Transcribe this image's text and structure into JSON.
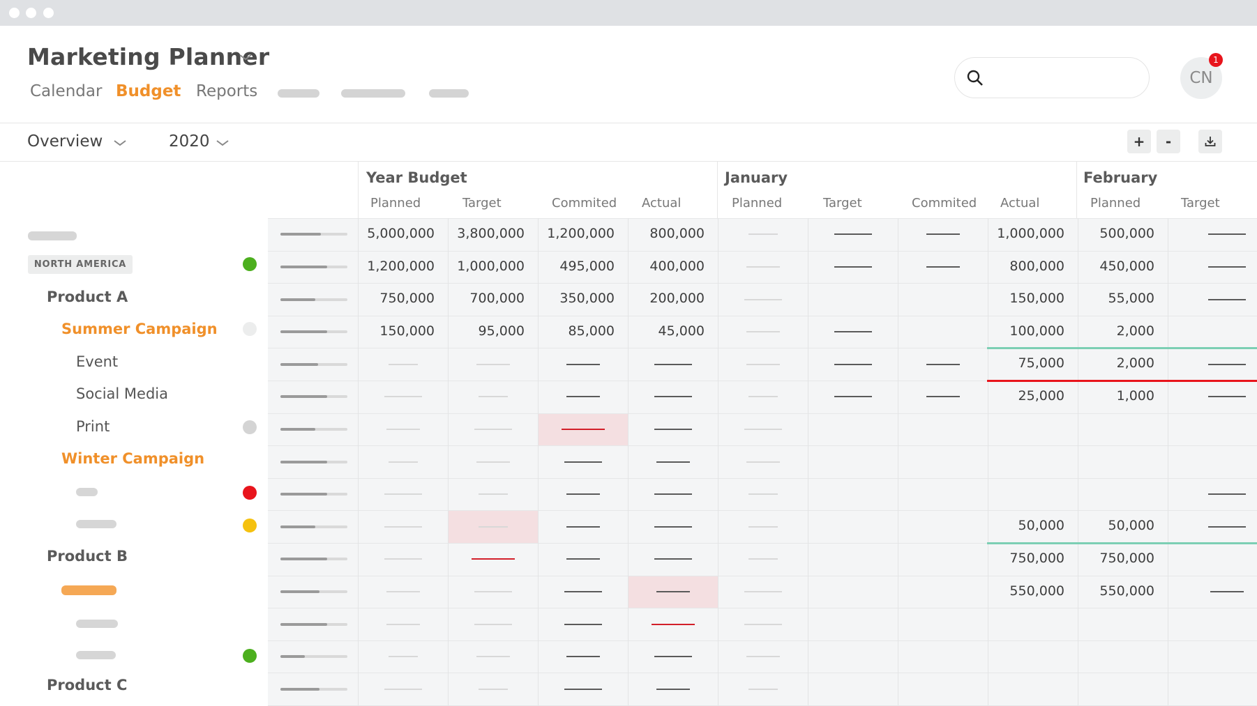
{
  "app": {
    "title": "Marketing Planner"
  },
  "nav": {
    "tabs": [
      {
        "label": "Calendar"
      },
      {
        "label": "Budget"
      },
      {
        "label": "Reports"
      }
    ]
  },
  "search": {
    "placeholder": "",
    "value": ""
  },
  "user": {
    "initials": "CN",
    "notifications": "1"
  },
  "filters": {
    "view": "Overview",
    "year": "2020"
  },
  "toolbar": {
    "add_label": "+",
    "remove_label": "-"
  },
  "icons": [
    "chevron-down-icon",
    "search-icon",
    "download-icon",
    "status-dot"
  ],
  "colors": {
    "accent": "#f0902a",
    "green": "#4caf1e",
    "red": "#e8141c",
    "yellow": "#f5c10f",
    "teal": "#7ccfb4",
    "alert_cell": "#f4dfe1"
  },
  "groups": [
    {
      "label": "Year Budget",
      "columns": [
        "Planned",
        "Target",
        "Commited",
        "Actual"
      ]
    },
    {
      "label": "January",
      "columns": [
        "Planned",
        "Target",
        "Commited",
        "Actual"
      ]
    },
    {
      "label": "February",
      "columns": [
        "Planned",
        "Target"
      ]
    }
  ],
  "region": "NORTH AMERICA",
  "rows": {
    "r1": {
      "ybPlanned": "5,000,000",
      "ybTarget": "3,800,000",
      "ybCommitted": "1,200,000",
      "ybActual": "800,000",
      "janActual": "1,000,000",
      "febPlanned": "500,000"
    },
    "r2": {
      "ybPlanned": "1,200,000",
      "ybTarget": "1,000,000",
      "ybCommitted": "495,000",
      "ybActual": "400,000",
      "janActual": "800,000",
      "febPlanned": "450,000"
    },
    "r3": {
      "label": "Product A",
      "ybPlanned": "750,000",
      "ybTarget": "700,000",
      "ybCommitted": "350,000",
      "ybActual": "200,000",
      "janActual": "150,000",
      "febPlanned": "55,000"
    },
    "r4": {
      "label": "Summer Campaign",
      "ybPlanned": "150,000",
      "ybTarget": "95,000",
      "ybCommitted": "85,000",
      "ybActual": "45,000",
      "janActual": "100,000",
      "febPlanned": "2,000"
    },
    "r5": {
      "label": "Event",
      "janActual": "75,000",
      "febPlanned": "2,000"
    },
    "r6": {
      "label": "Social Media",
      "janActual": "25,000",
      "febPlanned": "1,000"
    },
    "r7": {
      "label": "Print"
    },
    "r8": {
      "label": "Winter Campaign"
    },
    "r10": {
      "janActual": "50,000",
      "febPlanned": "50,000"
    },
    "r11": {
      "label": "Product B",
      "janActual": "750,000",
      "febPlanned": "750,000"
    },
    "r12": {
      "janActual": "550,000",
      "febPlanned": "550,000"
    },
    "r15": {
      "label": "Product C"
    }
  }
}
